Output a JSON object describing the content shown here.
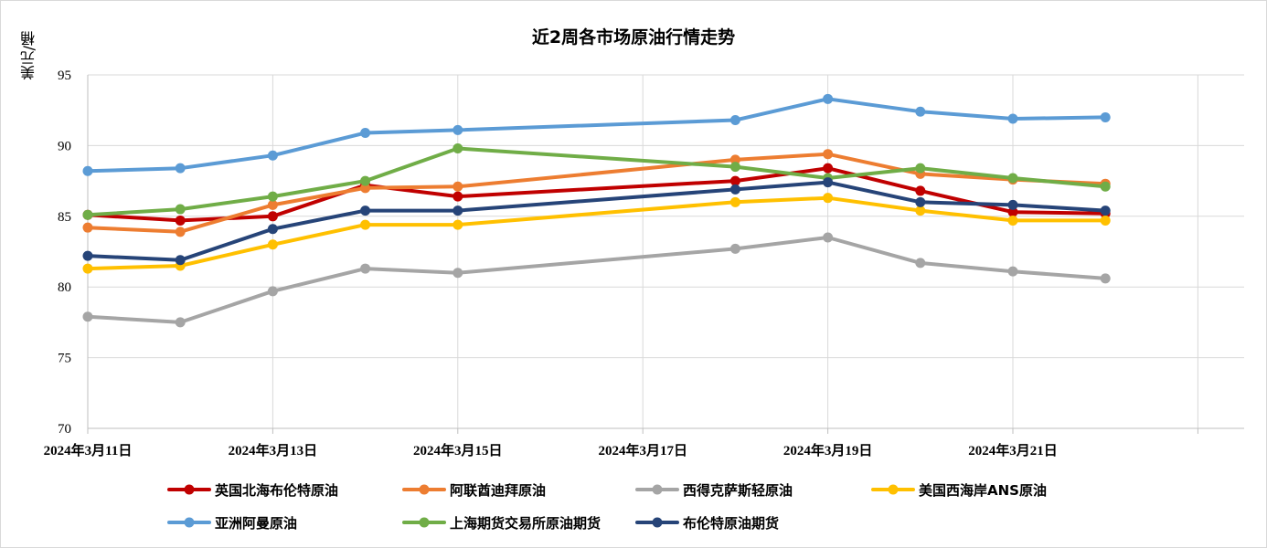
{
  "chart_data": {
    "type": "line",
    "title": "近2周各市场原油行情走势",
    "ylabel": "美元/桶",
    "xlabel": "",
    "ylim": [
      70,
      95
    ],
    "yticks": [
      70,
      75,
      80,
      85,
      90,
      95
    ],
    "x": [
      "2024-03-11",
      "2024-03-12",
      "2024-03-13",
      "2024-03-14",
      "2024-03-15",
      "2024-03-18",
      "2024-03-19",
      "2024-03-20",
      "2024-03-21",
      "2024-03-22"
    ],
    "xtick_labels": [
      "2024年3月11日",
      "2024年3月13日",
      "2024年3月15日",
      "2024年3月17日",
      "2024年3月19日",
      "2024年3月21日"
    ],
    "grid": true,
    "legend_position": "bottom",
    "series": [
      {
        "name": "英国北海布伦特原油",
        "color": "#c00000",
        "values": [
          85.1,
          84.7,
          85.0,
          87.2,
          86.4,
          87.5,
          88.4,
          86.8,
          85.3,
          85.2
        ]
      },
      {
        "name": "阿联酋迪拜原油",
        "color": "#ed7d31",
        "values": [
          84.2,
          83.9,
          85.8,
          87.0,
          87.1,
          89.0,
          89.4,
          88.0,
          87.6,
          87.3
        ]
      },
      {
        "name": "西得克萨斯轻原油",
        "color": "#a5a5a5",
        "values": [
          77.9,
          77.5,
          79.7,
          81.3,
          81.0,
          82.7,
          83.5,
          81.7,
          81.1,
          80.6
        ]
      },
      {
        "name": "美国西海岸ANS原油",
        "color": "#ffc000",
        "values": [
          81.3,
          81.5,
          83.0,
          84.4,
          84.4,
          86.0,
          86.3,
          85.4,
          84.7,
          84.7
        ]
      },
      {
        "name": "亚洲阿曼原油",
        "color": "#5b9bd5",
        "values": [
          88.2,
          88.4,
          89.3,
          90.9,
          91.1,
          91.8,
          93.3,
          92.4,
          91.9,
          92.0
        ]
      },
      {
        "name": "上海期货交易所原油期货",
        "color": "#70ad47",
        "values": [
          85.1,
          85.5,
          86.4,
          87.5,
          89.8,
          88.5,
          87.7,
          88.4,
          87.7,
          87.1
        ]
      },
      {
        "name": "布伦特原油期货",
        "color": "#264478",
        "values": [
          82.2,
          81.9,
          84.1,
          85.4,
          85.4,
          86.9,
          87.4,
          86.0,
          85.8,
          85.4
        ]
      }
    ]
  }
}
